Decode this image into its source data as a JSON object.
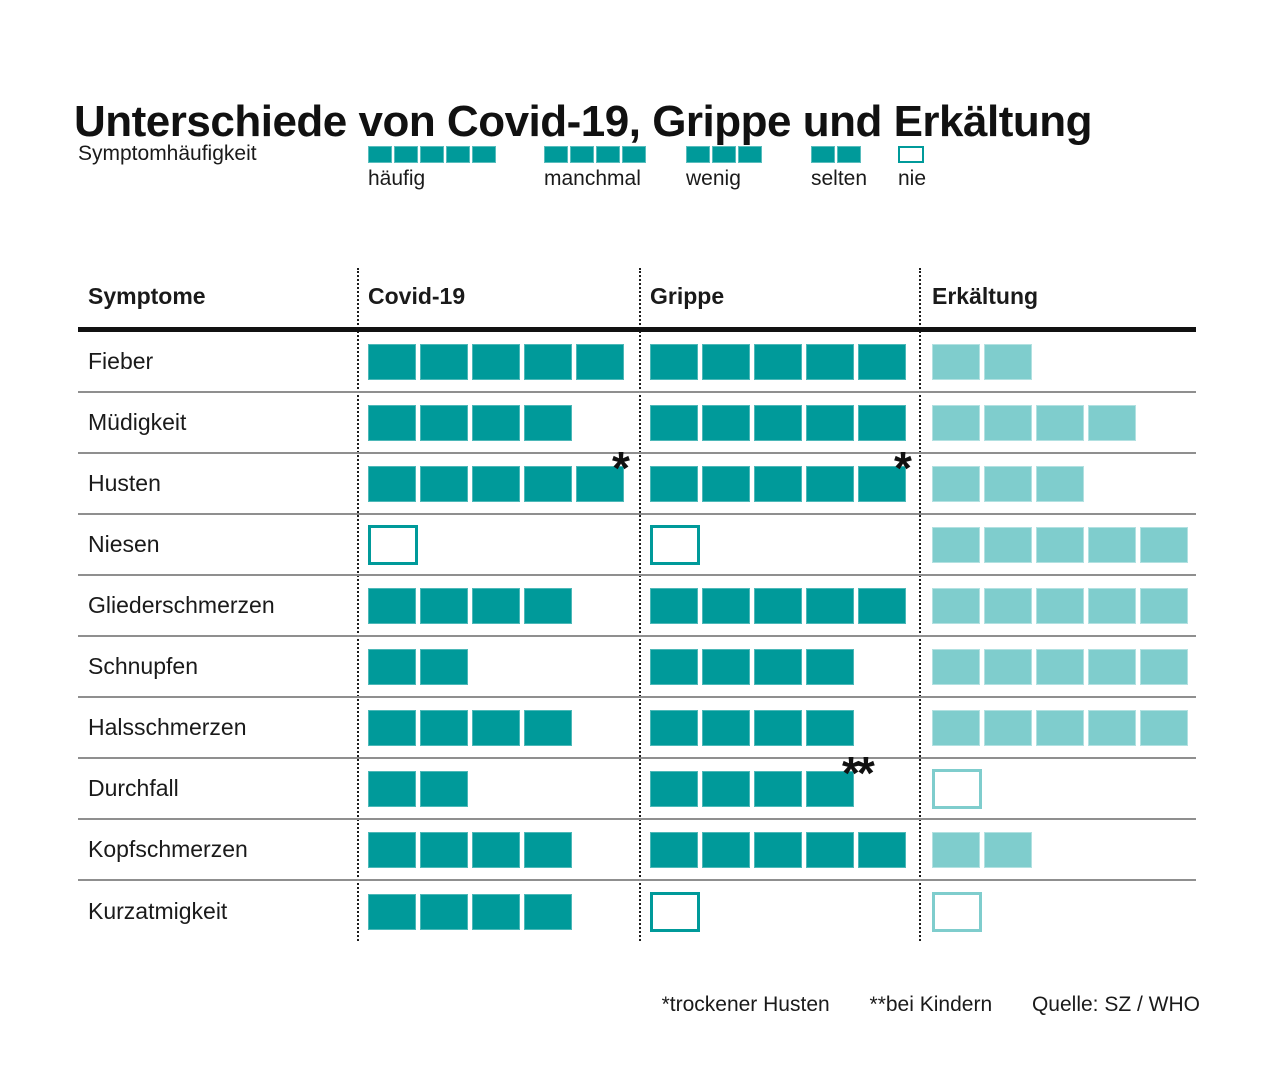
{
  "title": "Unterschiede von Covid-19, Grippe und Erkältung",
  "legend": {
    "label": "Symptomhäufigkeit",
    "items": [
      {
        "label": "häufig",
        "count": 5
      },
      {
        "label": "manchmal",
        "count": 4
      },
      {
        "label": "wenig",
        "count": 3
      },
      {
        "label": "selten",
        "count": 2
      },
      {
        "label": "nie",
        "count": 0
      }
    ]
  },
  "table": {
    "columns": [
      "Symptome",
      "Covid-19",
      "Grippe",
      "Erkältung"
    ],
    "rows": [
      {
        "symptom": "Fieber",
        "values": [
          5,
          5,
          2
        ],
        "notes": [
          "",
          "",
          ""
        ]
      },
      {
        "symptom": "Müdigkeit",
        "values": [
          4,
          5,
          4
        ],
        "notes": [
          "",
          "",
          ""
        ]
      },
      {
        "symptom": "Husten",
        "values": [
          5,
          5,
          3
        ],
        "notes": [
          "*",
          "*",
          ""
        ]
      },
      {
        "symptom": "Niesen",
        "values": [
          0,
          0,
          5
        ],
        "notes": [
          "",
          "",
          ""
        ]
      },
      {
        "symptom": "Gliederschmerzen",
        "values": [
          4,
          5,
          5
        ],
        "notes": [
          "",
          "",
          ""
        ]
      },
      {
        "symptom": "Schnupfen",
        "values": [
          2,
          4,
          5
        ],
        "notes": [
          "",
          "",
          ""
        ]
      },
      {
        "symptom": "Halsschmerzen",
        "values": [
          4,
          4,
          5
        ],
        "notes": [
          "",
          "",
          ""
        ]
      },
      {
        "symptom": "Durchfall",
        "values": [
          2,
          4,
          0
        ],
        "notes": [
          "",
          "**",
          ""
        ]
      },
      {
        "symptom": "Kopfschmerzen",
        "values": [
          4,
          5,
          2
        ],
        "notes": [
          "",
          "",
          ""
        ]
      },
      {
        "symptom": "Kurzatmigkeit",
        "values": [
          4,
          0,
          0
        ],
        "notes": [
          "",
          "",
          ""
        ]
      }
    ]
  },
  "footnotes": [
    "*trockener Husten",
    "**bei Kindern"
  ],
  "source": "Quelle: SZ / WHO",
  "colors": {
    "covid_grippe": "#009a9a",
    "erkaeltung": "#7fcdcd",
    "separator": "#8f8f8f",
    "text": "#111111"
  },
  "chart_data": {
    "type": "table",
    "title": "Unterschiede von Covid-19, Grippe und Erkältung",
    "value_scale": {
      "5": "häufig",
      "4": "manchmal",
      "3": "wenig",
      "2": "selten",
      "0": "nie"
    },
    "categories": [
      "Fieber",
      "Müdigkeit",
      "Husten",
      "Niesen",
      "Gliederschmerzen",
      "Schnupfen",
      "Halsschmerzen",
      "Durchfall",
      "Kopfschmerzen",
      "Kurzatmigkeit"
    ],
    "series": [
      {
        "name": "Covid-19",
        "values": [
          5,
          4,
          5,
          0,
          4,
          2,
          4,
          2,
          4,
          4
        ]
      },
      {
        "name": "Grippe",
        "values": [
          5,
          5,
          5,
          0,
          5,
          4,
          4,
          4,
          5,
          0
        ]
      },
      {
        "name": "Erkältung",
        "values": [
          2,
          4,
          3,
          5,
          5,
          5,
          5,
          0,
          2,
          0
        ]
      }
    ],
    "annotations": [
      {
        "series": "Covid-19",
        "category": "Husten",
        "marker": "*"
      },
      {
        "series": "Grippe",
        "category": "Husten",
        "marker": "*"
      },
      {
        "series": "Grippe",
        "category": "Durchfall",
        "marker": "**"
      }
    ],
    "legend_position": "top",
    "grid": "row-separators"
  }
}
